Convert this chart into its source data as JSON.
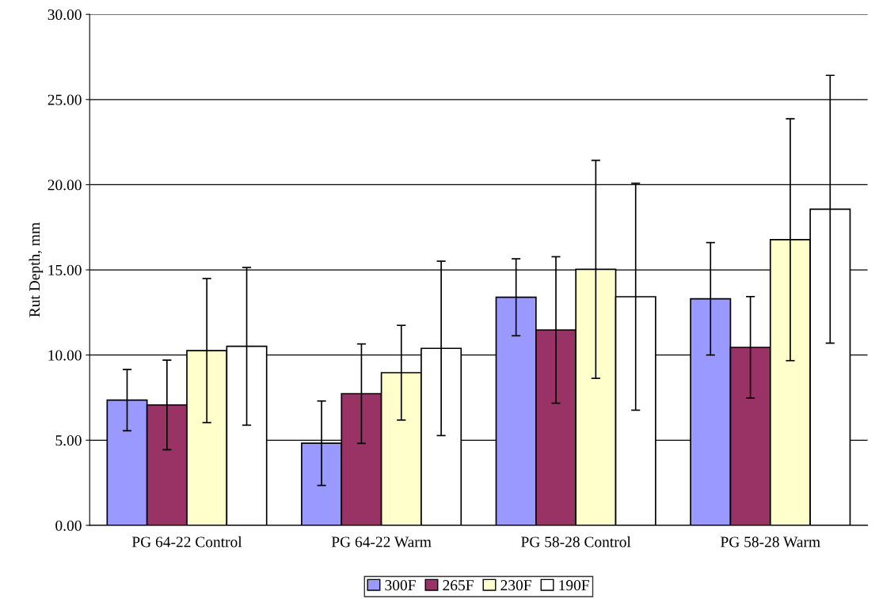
{
  "chart_data": {
    "type": "bar",
    "ylabel": "Rut Depth, mm",
    "categories": [
      "PG 64-22 Control",
      "PG 64-22 Warm",
      "PG 58-28 Control",
      "PG 58-28 Warm"
    ],
    "series": [
      {
        "name": "300F",
        "color": "#9999ff",
        "values": [
          7.35,
          4.82,
          13.39,
          13.3
        ],
        "errors": [
          1.8,
          2.48,
          2.26,
          3.3
        ]
      },
      {
        "name": "265F",
        "color": "#993366",
        "values": [
          7.07,
          7.73,
          11.47,
          10.45
        ],
        "errors": [
          2.63,
          2.92,
          4.3,
          2.98
        ]
      },
      {
        "name": "230F",
        "color": "#ffffcc",
        "values": [
          10.26,
          8.96,
          15.03,
          16.77
        ],
        "errors": [
          4.23,
          2.78,
          6.4,
          7.1
        ]
      },
      {
        "name": "190F",
        "color": "#ffffff",
        "values": [
          10.51,
          10.39,
          13.42,
          18.56
        ],
        "errors": [
          4.63,
          5.12,
          6.66,
          7.86
        ]
      }
    ],
    "ylim": [
      0,
      30
    ],
    "yticks": [
      {
        "value": 0,
        "label": "0.00"
      },
      {
        "value": 5,
        "label": "5.00"
      },
      {
        "value": 10,
        "label": "10.00"
      },
      {
        "value": 15,
        "label": "15.00"
      },
      {
        "value": 20,
        "label": "20.00"
      },
      {
        "value": 25,
        "label": "25.00"
      },
      {
        "value": 30,
        "label": "30.00"
      }
    ],
    "grid": "y",
    "legend": "bottom"
  }
}
